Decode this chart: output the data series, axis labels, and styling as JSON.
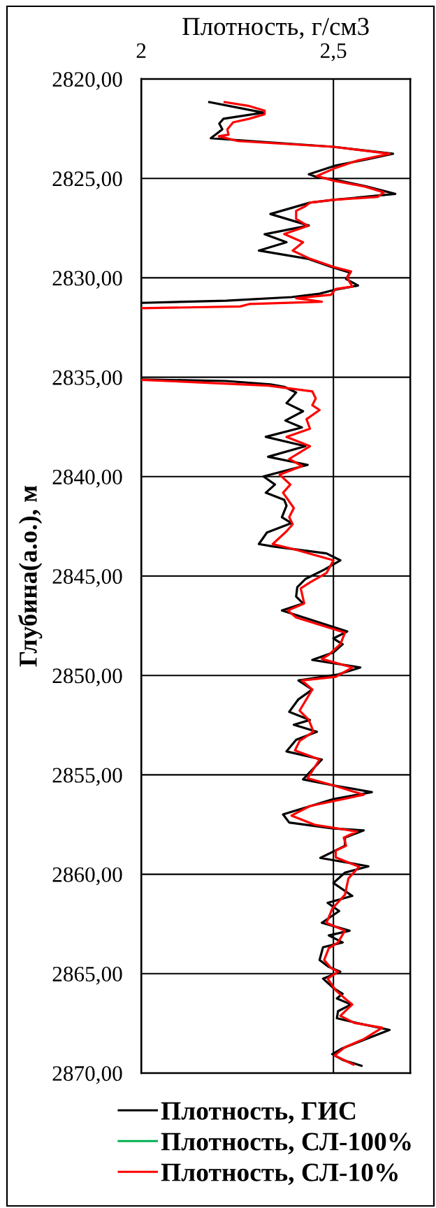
{
  "chart_data": {
    "type": "line",
    "xlabel": "Плотность, г/см3",
    "ylabel": "Глубина(а.о.), м",
    "xlim": [
      2,
      2.7
    ],
    "xticks": [
      2,
      {
        "value": 2.5,
        "label": "2,5"
      }
    ],
    "ylim": [
      2870,
      2820
    ],
    "yticks": [
      {
        "value": 2820,
        "label": "2820,00"
      },
      {
        "value": 2825,
        "label": "2825,00"
      },
      {
        "value": 2830,
        "label": "2830,00"
      },
      {
        "value": 2835,
        "label": "2835,00"
      },
      {
        "value": 2840,
        "label": "2840,00"
      },
      {
        "value": 2845,
        "label": "2845,00"
      },
      {
        "value": 2850,
        "label": "2850,00"
      },
      {
        "value": 2855,
        "label": "2855,00"
      },
      {
        "value": 2860,
        "label": "2860,00"
      },
      {
        "value": 2865,
        "label": "2865,00"
      },
      {
        "value": 2870,
        "label": "2870,00"
      }
    ],
    "grid": true,
    "legend": "bottom",
    "line_style": "solid",
    "series": [
      {
        "name": "Плотность, ГИС",
        "color": "#000000",
        "x": [
          2.177,
          2.318,
          2.214,
          2.203,
          2.211,
          2.181,
          2.5,
          2.655,
          2.585,
          2.506,
          2.436,
          2.457,
          2.5,
          2.585,
          2.661,
          2.5,
          2.439,
          2.336,
          2.436,
          2.321,
          2.378,
          2.306,
          2.433,
          2.494,
          2.543,
          2.533,
          2.564,
          2.5,
          2.464,
          2.391,
          2.221,
          2.0,
          null,
          2.0,
          2.221,
          2.336,
          2.372,
          2.403,
          2.378,
          2.421,
          2.375,
          2.418,
          2.324,
          2.427,
          2.33,
          2.433,
          2.318,
          2.348,
          2.324,
          2.372,
          2.378,
          2.366,
          2.391,
          2.327,
          2.306,
          2.342,
          2.482,
          2.518,
          2.476,
          2.427,
          2.406,
          2.403,
          2.421,
          2.366,
          2.536,
          2.5,
          2.524,
          2.5,
          2.445,
          2.57,
          2.512,
          2.409,
          2.445,
          2.409,
          2.385,
          2.439,
          2.397,
          2.457,
          2.403,
          2.378,
          2.47,
          2.421,
          2.5,
          2.6,
          2.5,
          2.369,
          2.385,
          2.5,
          2.579,
          2.53,
          2.53,
          2.466,
          2.591,
          2.53,
          2.5,
          2.549,
          2.485,
          2.515,
          2.47,
          2.542,
          2.488,
          2.524,
          2.473,
          2.464,
          2.488,
          2.518,
          2.473,
          2.5,
          2.524,
          2.509,
          2.546,
          2.512,
          2.509,
          2.561,
          2.646,
          2.585,
          2.524,
          2.497,
          2.524,
          2.573
        ],
        "values": [
          2821.16,
          2821.69,
          2822.0,
          2822.24,
          2822.53,
          2822.98,
          2823.41,
          2823.76,
          2824.05,
          2824.35,
          2824.79,
          2824.93,
          2825.05,
          2825.4,
          2825.78,
          2826.08,
          2826.22,
          2826.79,
          2827.37,
          2827.81,
          2828.21,
          2828.63,
          2829.04,
          2829.45,
          2829.74,
          2830.06,
          2830.39,
          2830.62,
          2830.8,
          2830.97,
          2831.15,
          2831.26,
          null,
          2835.11,
          2835.19,
          2835.36,
          2835.48,
          2835.77,
          2836.3,
          2836.71,
          2837.18,
          2837.53,
          2838.0,
          2838.47,
          2839.0,
          2839.41,
          2839.99,
          2840.4,
          2840.81,
          2841.17,
          2841.46,
          2842.04,
          2842.34,
          2842.81,
          2843.39,
          2843.51,
          2843.86,
          2844.21,
          2844.68,
          2845.15,
          2845.56,
          2846.03,
          2846.38,
          2846.73,
          2847.79,
          2848.14,
          2848.43,
          2848.84,
          2849.22,
          2849.6,
          2849.95,
          2850.25,
          2850.71,
          2851.2,
          2851.83,
          2852.24,
          2852.48,
          2852.83,
          2853.24,
          2853.82,
          2854.23,
          2855.23,
          2855.53,
          2855.87,
          2856.22,
          2856.99,
          2857.4,
          2857.7,
          2857.79,
          2858.16,
          2858.57,
          2859.18,
          2859.6,
          2859.92,
          2860.44,
          2861.09,
          2861.44,
          2861.85,
          2862.44,
          2862.84,
          2863.08,
          2863.43,
          2863.67,
          2864.31,
          2864.66,
          2864.9,
          2865.25,
          2865.72,
          2866.01,
          2866.25,
          2866.55,
          2866.89,
          2867.24,
          2867.48,
          2867.83,
          2868.29,
          2868.75,
          2869.05,
          2869.34,
          2869.63
        ]
      },
      {
        "name": "Плотность, СЛ-100%",
        "color": "#00b050",
        "x": [
          null
        ],
        "values": [
          null
        ]
      },
      {
        "name": "Плотность, СЛ-10%",
        "color": "#ff0000",
        "x": [
          2.217,
          2.281,
          2.321,
          2.321,
          2.281,
          2.239,
          2.224,
          2.227,
          2.202,
          2.251,
          2.5,
          2.646,
          2.561,
          2.506,
          2.457,
          2.5,
          2.579,
          2.631,
          2.615,
          2.5,
          2.439,
          2.427,
          2.403,
          2.403,
          2.433,
          2.372,
          2.421,
          2.394,
          2.439,
          2.5,
          2.546,
          2.536,
          2.549,
          2.506,
          2.494,
          2.403,
          2.47,
          2.281,
          2.257,
          2.0,
          null,
          2.0,
          2.33,
          2.445,
          2.454,
          2.445,
          2.464,
          2.43,
          2.439,
          2.378,
          2.439,
          2.385,
          2.418,
          2.36,
          2.388,
          2.369,
          2.397,
          2.385,
          2.394,
          2.378,
          2.342,
          2.403,
          2.5,
          2.482,
          2.439,
          2.415,
          2.424,
          2.381,
          2.403,
          2.53,
          2.518,
          2.488,
          2.47,
          2.549,
          2.506,
          2.418,
          2.445,
          2.412,
          2.436,
          2.448,
          2.412,
          2.4,
          2.464,
          2.433,
          2.5,
          2.579,
          2.439,
          2.391,
          2.451,
          2.561,
          2.527,
          2.533,
          2.506,
          2.506,
          2.567,
          2.539,
          2.53,
          2.497,
          2.482,
          2.53,
          2.512,
          2.488,
          2.476,
          2.494,
          2.512,
          2.485,
          2.506,
          2.527,
          2.549,
          2.518,
          2.555,
          2.627,
          2.579,
          2.53,
          2.503,
          2.527,
          2.552
        ],
        "values": [
          2821.16,
          2821.36,
          2821.59,
          2821.77,
          2822.0,
          2822.18,
          2822.53,
          2822.8,
          2822.88,
          2823.12,
          2823.41,
          2823.76,
          2824.11,
          2824.47,
          2824.88,
          2825.11,
          2825.4,
          2825.7,
          2825.93,
          2826.08,
          2826.22,
          2826.4,
          2826.63,
          2827.04,
          2827.39,
          2827.8,
          2828.21,
          2828.63,
          2829.04,
          2829.45,
          2829.68,
          2830.0,
          2830.44,
          2830.56,
          2830.85,
          2831.03,
          2831.2,
          2831.32,
          2831.44,
          2831.53,
          null,
          2835.13,
          2835.42,
          2835.71,
          2836.07,
          2836.41,
          2836.65,
          2837.11,
          2837.59,
          2838.0,
          2838.47,
          2839.11,
          2839.47,
          2839.9,
          2840.4,
          2840.81,
          2841.58,
          2842.04,
          2842.4,
          2842.75,
          2843.39,
          2843.68,
          2844.21,
          2844.85,
          2845.32,
          2845.62,
          2846.38,
          2846.73,
          2847.08,
          2847.85,
          2848.43,
          2848.96,
          2849.17,
          2849.6,
          2850.07,
          2850.25,
          2850.71,
          2851.77,
          2852.24,
          2852.83,
          2853.3,
          2853.77,
          2854.23,
          2855.17,
          2855.53,
          2856.0,
          2856.57,
          2857.05,
          2857.51,
          2857.85,
          2858.16,
          2858.57,
          2858.81,
          2859.15,
          2859.62,
          2860.21,
          2861.03,
          2861.73,
          2862.44,
          2862.84,
          2863.43,
          2863.72,
          2864.31,
          2864.72,
          2864.9,
          2865.25,
          2865.84,
          2866.2,
          2866.55,
          2867.12,
          2867.48,
          2867.72,
          2868.29,
          2868.7,
          2869.11,
          2869.34,
          2869.57
        ]
      }
    ]
  }
}
